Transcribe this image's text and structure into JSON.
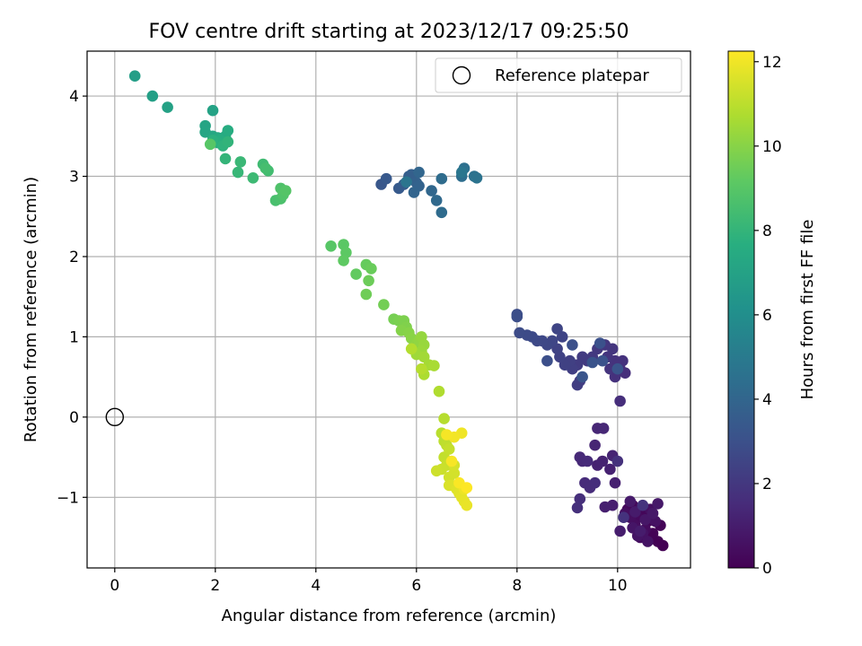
{
  "chart_data": {
    "type": "scatter",
    "title": "FOV centre drift starting at 2023/12/17 09:25:50",
    "xlabel": "Angular distance from reference (arcmin)",
    "ylabel": "Rotation from reference (arcmin)",
    "xlim": [
      -0.55,
      11.45
    ],
    "ylim": [
      -1.88,
      4.56
    ],
    "xticks": [
      0,
      2,
      4,
      6,
      8,
      10
    ],
    "yticks": [
      -1,
      0,
      1,
      2,
      3,
      4
    ],
    "xtick_labels": [
      "0",
      "2",
      "4",
      "6",
      "8",
      "10"
    ],
    "ytick_labels": [
      "−1",
      "0",
      "1",
      "2",
      "3",
      "4"
    ],
    "grid": true,
    "legend": {
      "position": "top-right",
      "entries": [
        "Reference platepar"
      ]
    },
    "colorbar": {
      "label": "Hours from first FF file",
      "colormap": "viridis",
      "range": [
        0,
        12.25
      ],
      "ticks": [
        0,
        2,
        4,
        6,
        8,
        10,
        12
      ],
      "tick_labels": [
        "0",
        "2",
        "4",
        "6",
        "8",
        "10",
        "12"
      ]
    },
    "reference_point": {
      "x": 0,
      "y": 0,
      "style": "open-circle",
      "color": "#000000"
    },
    "colors": {
      "grid": "#b0b0b0",
      "axes": "#000000",
      "background": "#ffffff"
    },
    "series": [
      {
        "c_range": [
          0.0,
          1.8
        ],
        "points": [
          [
            10.9,
            -1.6
          ],
          [
            10.8,
            -1.55
          ],
          [
            10.7,
            -1.45
          ],
          [
            10.85,
            -1.35
          ],
          [
            10.6,
            -1.3
          ],
          [
            10.5,
            -1.2
          ],
          [
            10.3,
            -1.1
          ],
          [
            10.2,
            -1.15
          ],
          [
            10.4,
            -1.25
          ],
          [
            10.55,
            -1.4
          ],
          [
            10.45,
            -1.5
          ],
          [
            10.35,
            -1.35
          ],
          [
            10.25,
            -1.25
          ],
          [
            10.15,
            -1.2
          ],
          [
            10.65,
            -1.15
          ],
          [
            10.75,
            -1.3
          ],
          [
            10.5,
            -1.45
          ],
          [
            10.6,
            -1.55
          ],
          [
            10.4,
            -1.48
          ],
          [
            10.3,
            -1.38
          ],
          [
            10.55,
            -1.28
          ],
          [
            10.7,
            -1.2
          ],
          [
            10.8,
            -1.08
          ],
          [
            10.25,
            -1.05
          ],
          [
            10.35,
            -1.18
          ],
          [
            10.45,
            -1.42
          ],
          [
            10.05,
            -1.42
          ],
          [
            9.9,
            -1.1
          ],
          [
            9.75,
            -1.12
          ],
          [
            9.95,
            -0.82
          ],
          [
            9.85,
            -0.65
          ],
          [
            9.6,
            -0.6
          ],
          [
            9.7,
            -0.55
          ],
          [
            9.9,
            -0.48
          ],
          [
            9.55,
            -0.35
          ],
          [
            9.6,
            -0.14
          ],
          [
            9.72,
            -0.14
          ],
          [
            9.3,
            -0.55
          ],
          [
            9.25,
            -0.5
          ],
          [
            9.4,
            -0.55
          ],
          [
            9.35,
            -0.82
          ],
          [
            9.45,
            -0.88
          ],
          [
            9.55,
            -0.82
          ],
          [
            9.25,
            -1.02
          ],
          [
            9.2,
            -1.13
          ],
          [
            10.0,
            -0.55
          ],
          [
            10.12,
            -1.25
          ],
          [
            10.5,
            -1.1
          ]
        ]
      },
      {
        "c_range": [
          1.6,
          3.2
        ],
        "points": [
          [
            10.05,
            0.2
          ],
          [
            10.15,
            0.55
          ],
          [
            10.05,
            0.6
          ],
          [
            9.95,
            0.5
          ],
          [
            10.1,
            0.7
          ],
          [
            9.95,
            0.7
          ],
          [
            9.85,
            0.6
          ],
          [
            9.8,
            0.75
          ],
          [
            9.9,
            0.85
          ],
          [
            9.75,
            0.9
          ],
          [
            9.6,
            0.85
          ],
          [
            9.5,
            0.75
          ],
          [
            9.4,
            0.7
          ],
          [
            9.3,
            0.75
          ],
          [
            9.2,
            0.65
          ],
          [
            9.25,
            0.45
          ],
          [
            9.2,
            0.4
          ],
          [
            9.1,
            0.6
          ],
          [
            9.05,
            0.7
          ],
          [
            8.95,
            0.65
          ],
          [
            8.85,
            0.75
          ],
          [
            8.8,
            0.85
          ],
          [
            8.9,
            1.0
          ],
          [
            8.8,
            1.1
          ],
          [
            8.7,
            0.95
          ],
          [
            8.6,
            0.9
          ],
          [
            8.5,
            0.95
          ],
          [
            8.4,
            0.95
          ],
          [
            8.3,
            1.0
          ],
          [
            8.2,
            1.02
          ],
          [
            8.05,
            1.05
          ],
          [
            8.0,
            1.28
          ],
          [
            8.0,
            1.25
          ],
          [
            8.6,
            0.7
          ],
          [
            9.1,
            0.9
          ],
          [
            9.65,
            0.92
          ],
          [
            9.7,
            0.7
          ],
          [
            9.5,
            0.68
          ],
          [
            10.0,
            0.6
          ],
          [
            9.3,
            0.5
          ]
        ]
      },
      {
        "c_range": [
          3.3,
          4.8
        ],
        "points": [
          [
            5.3,
            2.9
          ],
          [
            5.4,
            2.97
          ],
          [
            5.65,
            2.85
          ],
          [
            5.75,
            2.9
          ],
          [
            5.85,
            3.0
          ],
          [
            5.9,
            3.02
          ],
          [
            6.0,
            2.92
          ],
          [
            6.05,
            2.88
          ],
          [
            5.95,
            2.8
          ],
          [
            6.05,
            3.05
          ],
          [
            6.3,
            2.82
          ],
          [
            6.4,
            2.7
          ],
          [
            6.5,
            2.55
          ],
          [
            6.5,
            2.97
          ],
          [
            6.9,
            3.0
          ],
          [
            6.95,
            3.1
          ],
          [
            7.15,
            3.0
          ],
          [
            7.2,
            2.98
          ],
          [
            5.8,
            2.93
          ],
          [
            6.9,
            3.05
          ]
        ]
      },
      {
        "c_range": [
          6.8,
          9.0
        ],
        "points": [
          [
            0.4,
            4.25
          ],
          [
            0.75,
            4.0
          ],
          [
            1.05,
            3.86
          ],
          [
            1.95,
            3.82
          ],
          [
            1.8,
            3.63
          ],
          [
            1.8,
            3.55
          ],
          [
            1.95,
            3.5
          ],
          [
            2.05,
            3.48
          ],
          [
            2.2,
            3.5
          ],
          [
            2.25,
            3.57
          ],
          [
            2.1,
            3.45
          ],
          [
            2.05,
            3.42
          ],
          [
            1.95,
            3.45
          ],
          [
            2.15,
            3.38
          ],
          [
            2.25,
            3.43
          ],
          [
            2.2,
            3.22
          ],
          [
            2.45,
            3.05
          ],
          [
            2.5,
            3.18
          ],
          [
            2.75,
            2.98
          ],
          [
            2.95,
            3.15
          ],
          [
            3.05,
            3.07
          ],
          [
            3.0,
            3.1
          ],
          [
            3.2,
            2.7
          ],
          [
            3.3,
            2.72
          ],
          [
            3.3,
            2.85
          ],
          [
            3.35,
            2.77
          ],
          [
            3.4,
            2.82
          ],
          [
            1.9,
            3.4
          ]
        ]
      },
      {
        "c_range": [
          9.0,
          10.9
        ],
        "points": [
          [
            4.3,
            2.13
          ],
          [
            4.55,
            2.15
          ],
          [
            4.6,
            2.05
          ],
          [
            4.55,
            1.95
          ],
          [
            4.8,
            1.78
          ],
          [
            5.0,
            1.9
          ],
          [
            5.1,
            1.85
          ],
          [
            5.05,
            1.7
          ],
          [
            5.0,
            1.53
          ],
          [
            5.35,
            1.4
          ],
          [
            5.55,
            1.22
          ],
          [
            5.65,
            1.2
          ],
          [
            5.75,
            1.2
          ],
          [
            5.8,
            1.12
          ],
          [
            5.7,
            1.08
          ],
          [
            5.85,
            1.05
          ],
          [
            5.9,
            0.98
          ],
          [
            6.0,
            0.92
          ],
          [
            6.05,
            0.95
          ],
          [
            6.1,
            1.0
          ],
          [
            6.15,
            0.9
          ],
          [
            6.1,
            0.82
          ],
          [
            6.0,
            0.78
          ],
          [
            6.15,
            0.75
          ],
          [
            6.25,
            0.65
          ],
          [
            6.35,
            0.64
          ],
          [
            6.15,
            0.53
          ],
          [
            6.45,
            0.32
          ],
          [
            5.9,
            0.85
          ],
          [
            6.1,
            0.6
          ]
        ]
      },
      {
        "c_range": [
          10.9,
          12.25
        ],
        "points": [
          [
            6.55,
            -0.02
          ],
          [
            6.5,
            -0.2
          ],
          [
            6.55,
            -0.3
          ],
          [
            6.6,
            -0.35
          ],
          [
            6.55,
            -0.5
          ],
          [
            6.65,
            -0.4
          ],
          [
            6.6,
            -0.6
          ],
          [
            6.5,
            -0.65
          ],
          [
            6.4,
            -0.67
          ],
          [
            6.65,
            -0.75
          ],
          [
            6.75,
            -0.7
          ],
          [
            6.75,
            -0.6
          ],
          [
            6.65,
            -0.85
          ],
          [
            6.7,
            -0.85
          ],
          [
            6.8,
            -0.9
          ],
          [
            6.85,
            -0.95
          ],
          [
            6.9,
            -1.0
          ],
          [
            6.95,
            -1.05
          ],
          [
            7.0,
            -1.1
          ],
          [
            6.95,
            -0.9
          ],
          [
            6.9,
            -0.2
          ],
          [
            6.75,
            -0.25
          ],
          [
            6.6,
            -0.22
          ],
          [
            6.7,
            -0.55
          ],
          [
            6.85,
            -0.82
          ],
          [
            7.0,
            -0.88
          ]
        ]
      }
    ]
  }
}
